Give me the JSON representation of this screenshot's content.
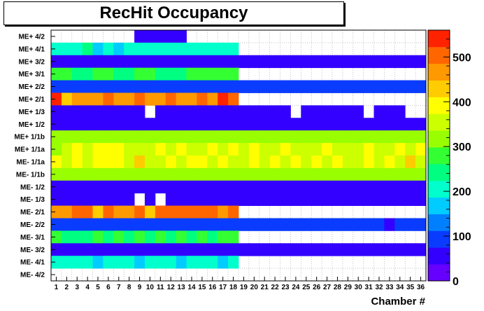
{
  "chart_data": {
    "type": "heatmap",
    "title": "RecHit Occupancy",
    "xlabel": "Chamber #",
    "ylabel": "",
    "x": [
      "1",
      "2",
      "3",
      "4",
      "5",
      "6",
      "7",
      "8",
      "9",
      "10",
      "11",
      "12",
      "13",
      "14",
      "15",
      "16",
      "17",
      "18",
      "19",
      "20",
      "21",
      "22",
      "23",
      "24",
      "25",
      "26",
      "27",
      "28",
      "29",
      "30",
      "31",
      "32",
      "33",
      "34",
      "35",
      "36"
    ],
    "y": [
      "ME+ 4/2",
      "ME+ 4/1",
      "ME+ 3/2",
      "ME+ 3/1",
      "ME+ 2/2",
      "ME+ 2/1",
      "ME+ 1/3",
      "ME+ 1/2",
      "ME+ 1/1b",
      "ME+ 1/1a",
      "ME- 1/1a",
      "ME- 1/1b",
      "ME- 1/2",
      "ME- 1/3",
      "ME- 2/1",
      "ME- 2/2",
      "ME- 3/1",
      "ME- 3/2",
      "ME- 4/1",
      "ME- 4/2"
    ],
    "zlim": [
      0,
      560
    ],
    "colorbar_ticks": [
      0,
      100,
      200,
      300,
      400,
      500
    ],
    "grid": true,
    "values": [
      [
        null,
        null,
        null,
        null,
        null,
        null,
        null,
        null,
        60,
        60,
        60,
        60,
        60,
        null,
        null,
        null,
        null,
        null,
        null,
        null,
        null,
        null,
        null,
        null,
        null,
        null,
        null,
        null,
        null,
        null,
        null,
        null,
        null,
        null,
        null,
        null
      ],
      [
        210,
        210,
        210,
        260,
        180,
        210,
        180,
        210,
        210,
        210,
        210,
        210,
        210,
        210,
        210,
        210,
        210,
        210,
        null,
        null,
        null,
        null,
        null,
        null,
        null,
        null,
        null,
        null,
        null,
        null,
        null,
        null,
        null,
        null,
        null,
        null
      ],
      [
        40,
        40,
        60,
        60,
        50,
        60,
        60,
        60,
        60,
        40,
        40,
        40,
        40,
        40,
        40,
        40,
        40,
        40,
        40,
        40,
        40,
        40,
        40,
        40,
        40,
        40,
        40,
        40,
        40,
        40,
        40,
        40,
        40,
        40,
        40,
        40
      ],
      [
        280,
        280,
        260,
        260,
        280,
        280,
        260,
        260,
        280,
        280,
        260,
        260,
        240,
        280,
        280,
        280,
        280,
        280,
        null,
        null,
        null,
        null,
        null,
        null,
        null,
        null,
        null,
        null,
        null,
        null,
        null,
        null,
        null,
        null,
        null,
        null
      ],
      [
        80,
        80,
        80,
        80,
        80,
        80,
        80,
        80,
        80,
        80,
        80,
        80,
        80,
        80,
        80,
        80,
        80,
        80,
        80,
        80,
        80,
        80,
        80,
        80,
        80,
        100,
        80,
        100,
        80,
        80,
        80,
        80,
        80,
        80,
        80,
        80
      ],
      [
        540,
        420,
        460,
        460,
        460,
        490,
        460,
        460,
        490,
        460,
        460,
        490,
        460,
        460,
        490,
        460,
        540,
        490,
        null,
        null,
        null,
        null,
        null,
        null,
        null,
        null,
        null,
        null,
        null,
        null,
        null,
        null,
        null,
        null,
        null,
        null
      ],
      [
        40,
        40,
        40,
        40,
        40,
        40,
        40,
        40,
        40,
        null,
        40,
        40,
        40,
        40,
        40,
        40,
        40,
        40,
        40,
        40,
        40,
        40,
        40,
        null,
        40,
        40,
        40,
        40,
        40,
        40,
        null,
        40,
        40,
        40,
        null,
        null
      ],
      [
        40,
        40,
        40,
        40,
        40,
        40,
        40,
        60,
        40,
        40,
        40,
        40,
        40,
        40,
        40,
        40,
        40,
        60,
        40,
        40,
        40,
        40,
        40,
        40,
        40,
        40,
        40,
        40,
        40,
        40,
        40,
        40,
        40,
        40,
        60,
        40
      ],
      [
        310,
        310,
        310,
        310,
        310,
        310,
        330,
        310,
        330,
        310,
        310,
        310,
        310,
        330,
        310,
        330,
        310,
        310,
        310,
        310,
        310,
        310,
        310,
        310,
        310,
        310,
        310,
        310,
        310,
        310,
        310,
        310,
        310,
        310,
        310,
        310
      ],
      [
        330,
        370,
        400,
        370,
        400,
        400,
        400,
        370,
        370,
        370,
        400,
        370,
        400,
        370,
        370,
        400,
        370,
        400,
        370,
        400,
        370,
        370,
        400,
        370,
        370,
        370,
        400,
        370,
        370,
        370,
        400,
        370,
        370,
        400,
        370,
        400
      ],
      [
        400,
        370,
        400,
        370,
        400,
        400,
        400,
        370,
        440,
        370,
        370,
        400,
        370,
        400,
        400,
        370,
        400,
        370,
        370,
        400,
        370,
        400,
        370,
        400,
        370,
        400,
        370,
        400,
        370,
        370,
        400,
        370,
        400,
        370,
        440,
        370
      ],
      [
        300,
        310,
        300,
        300,
        310,
        300,
        300,
        300,
        300,
        300,
        300,
        300,
        300,
        300,
        300,
        300,
        300,
        300,
        300,
        300,
        300,
        330,
        300,
        300,
        300,
        300,
        300,
        300,
        300,
        300,
        300,
        300,
        300,
        300,
        300,
        300
      ],
      [
        40,
        60,
        40,
        60,
        40,
        40,
        60,
        40,
        40,
        40,
        40,
        40,
        40,
        40,
        40,
        40,
        40,
        40,
        40,
        40,
        40,
        40,
        60,
        40,
        40,
        40,
        40,
        40,
        40,
        40,
        40,
        40,
        40,
        40,
        40,
        40
      ],
      [
        40,
        40,
        40,
        40,
        40,
        40,
        40,
        40,
        null,
        40,
        null,
        40,
        40,
        40,
        40,
        40,
        40,
        40,
        40,
        40,
        40,
        40,
        40,
        40,
        40,
        40,
        40,
        40,
        40,
        40,
        40,
        40,
        40,
        40,
        40,
        40
      ],
      [
        460,
        460,
        490,
        520,
        440,
        490,
        460,
        460,
        520,
        440,
        490,
        490,
        490,
        490,
        520,
        490,
        460,
        490,
        null,
        null,
        null,
        null,
        null,
        null,
        null,
        null,
        null,
        null,
        null,
        null,
        null,
        null,
        null,
        null,
        null,
        null
      ],
      [
        80,
        80,
        80,
        80,
        80,
        80,
        80,
        80,
        80,
        80,
        80,
        80,
        80,
        80,
        80,
        80,
        80,
        80,
        80,
        80,
        80,
        80,
        80,
        80,
        80,
        80,
        80,
        80,
        80,
        80,
        80,
        80,
        60,
        80,
        80,
        80
      ],
      [
        280,
        260,
        230,
        260,
        280,
        260,
        280,
        260,
        280,
        260,
        280,
        260,
        280,
        260,
        280,
        260,
        280,
        280,
        null,
        null,
        null,
        null,
        null,
        null,
        null,
        null,
        null,
        null,
        null,
        null,
        null,
        null,
        null,
        null,
        null,
        null
      ],
      [
        40,
        40,
        60,
        40,
        40,
        40,
        40,
        40,
        40,
        60,
        60,
        60,
        60,
        40,
        60,
        60,
        40,
        40,
        60,
        60,
        60,
        40,
        60,
        40,
        60,
        40,
        40,
        40,
        40,
        40,
        40,
        40,
        40,
        40,
        40,
        40
      ],
      [
        210,
        210,
        210,
        210,
        180,
        210,
        210,
        210,
        180,
        210,
        210,
        210,
        180,
        210,
        210,
        210,
        180,
        210,
        null,
        null,
        null,
        null,
        null,
        null,
        null,
        null,
        null,
        null,
        null,
        null,
        null,
        null,
        null,
        null,
        null,
        null
      ],
      [
        null,
        null,
        null,
        null,
        null,
        null,
        null,
        null,
        null,
        null,
        null,
        null,
        null,
        null,
        null,
        null,
        null,
        null,
        null,
        null,
        null,
        null,
        null,
        null,
        null,
        null,
        null,
        null,
        null,
        null,
        null,
        null,
        null,
        null,
        null,
        null
      ]
    ]
  }
}
